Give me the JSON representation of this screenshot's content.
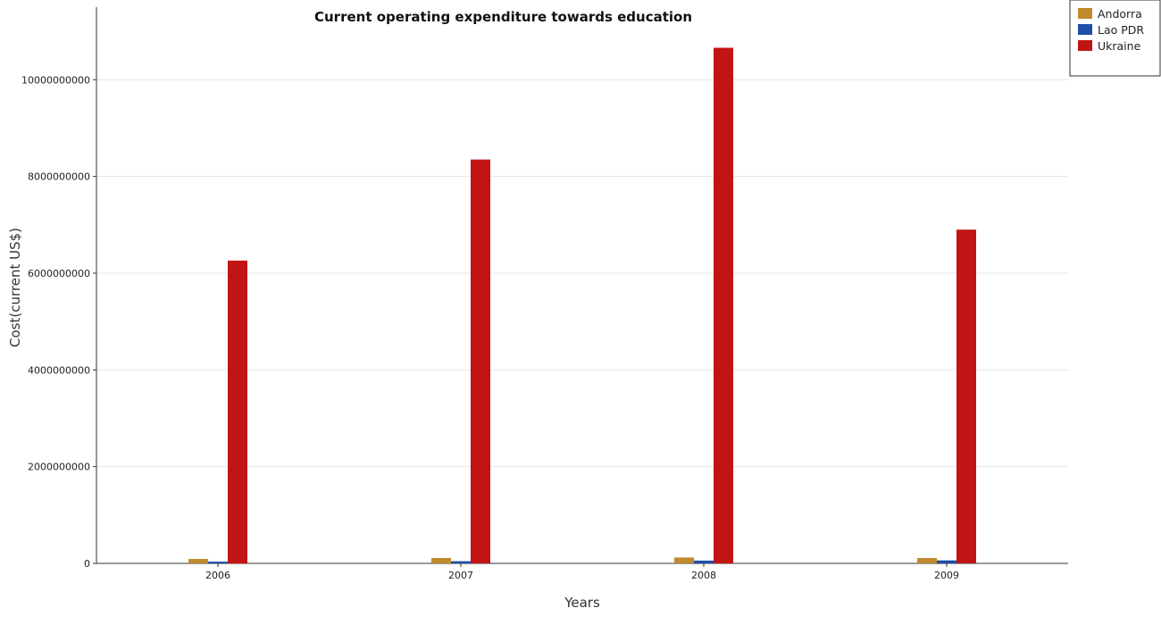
{
  "chart_data": {
    "type": "bar",
    "title": "Current operating expenditure towards education",
    "xlabel": "Years",
    "ylabel": "Cost(current US$)",
    "categories": [
      "2006",
      "2007",
      "2008",
      "2009"
    ],
    "series": [
      {
        "name": "Andorra",
        "color": "#c08a2d",
        "values": [
          92000000,
          112000000,
          122000000,
          111000000
        ]
      },
      {
        "name": "Lao PDR",
        "color": "#1f4ea8",
        "values": [
          36000000,
          45000000,
          58000000,
          62000000
        ]
      },
      {
        "name": "Ukraine",
        "color": "#c11515",
        "values": [
          6260000000,
          8350000000,
          10660000000,
          6900000000
        ]
      }
    ],
    "ylim": [
      0,
      11500000000
    ],
    "yticks": [
      0,
      2000000000,
      4000000000,
      6000000000,
      8000000000,
      10000000000
    ],
    "ytick_labels": [
      "0",
      "2000000000",
      "4000000000",
      "6000000000",
      "8000000000",
      "10000000000"
    ],
    "grid": true,
    "legend_position": "top-right"
  }
}
